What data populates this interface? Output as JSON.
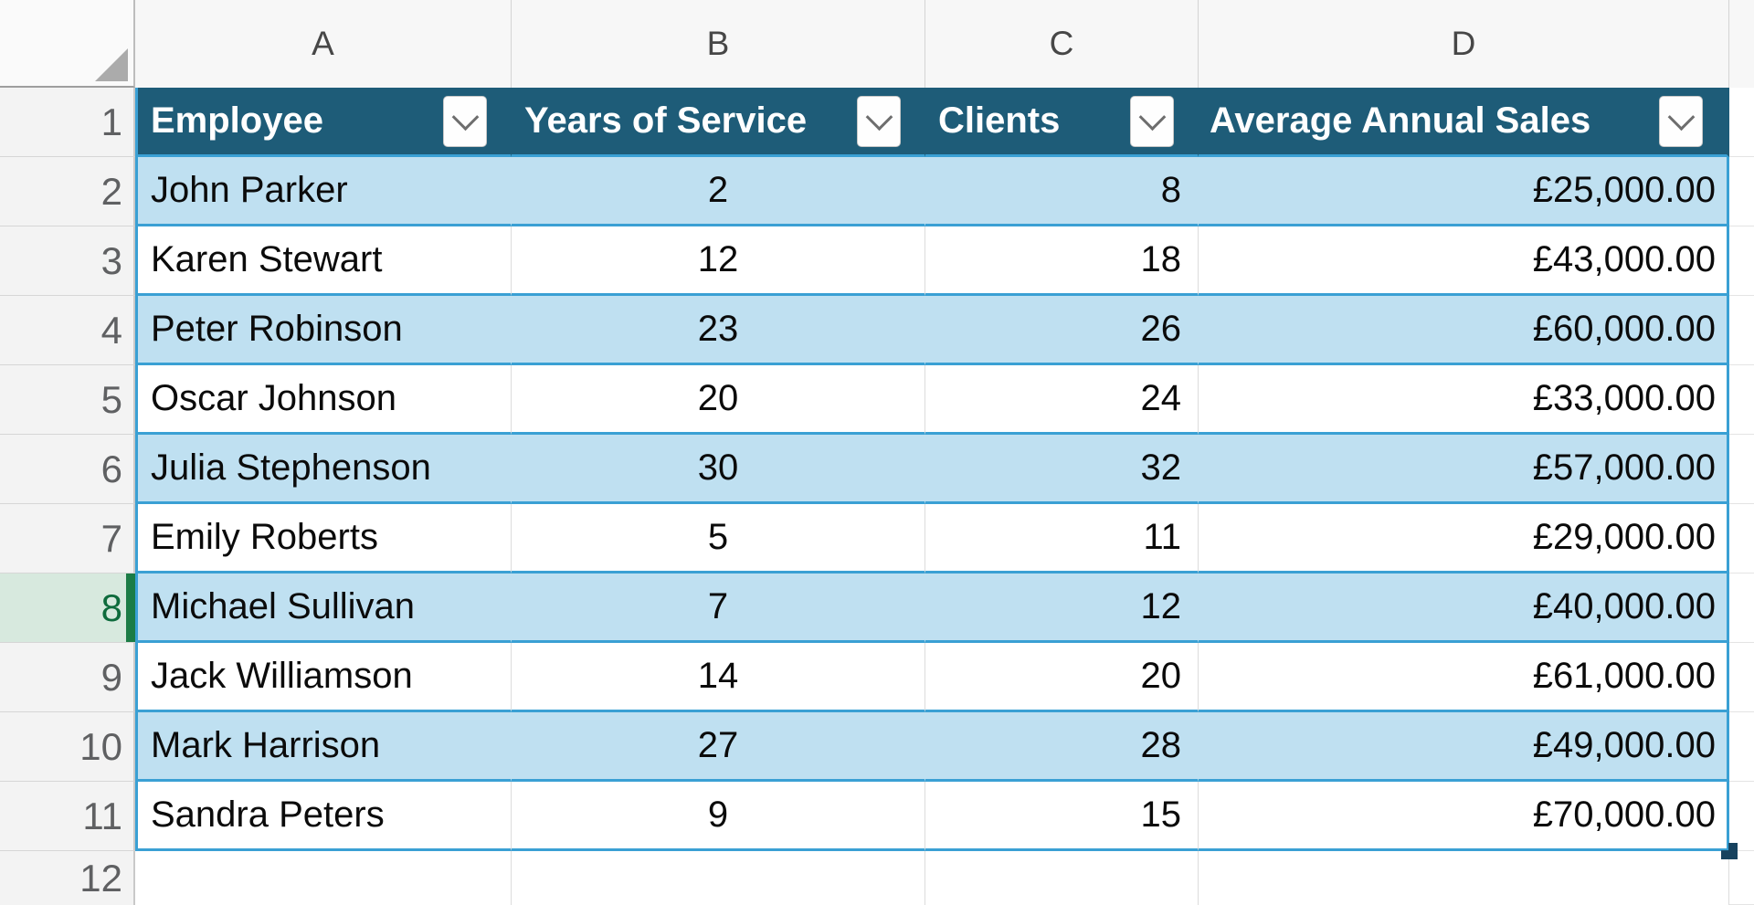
{
  "grid": {
    "column_labels": [
      "A",
      "B",
      "C",
      "D"
    ],
    "row_numbers": [
      "1",
      "2",
      "3",
      "4",
      "5",
      "6",
      "7",
      "8",
      "9",
      "10",
      "11",
      "12"
    ]
  },
  "selection": {
    "active_row_number": "8",
    "active_row_highlight": "#D7E9DE",
    "active_row_accent": "#1B7C45"
  },
  "table": {
    "headers": [
      {
        "label": "Employee"
      },
      {
        "label": "Years of Service"
      },
      {
        "label": "Clients"
      },
      {
        "label": "Average Annual Sales"
      }
    ],
    "rows": [
      {
        "employee": "John Parker",
        "years": "2",
        "clients": "8",
        "sales": "£25,000.00"
      },
      {
        "employee": "Karen Stewart",
        "years": "12",
        "clients": "18",
        "sales": "£43,000.00"
      },
      {
        "employee": "Peter Robinson",
        "years": "23",
        "clients": "26",
        "sales": "£60,000.00"
      },
      {
        "employee": "Oscar Johnson",
        "years": "20",
        "clients": "24",
        "sales": "£33,000.00"
      },
      {
        "employee": "Julia Stephenson",
        "years": "30",
        "clients": "32",
        "sales": "£57,000.00"
      },
      {
        "employee": "Emily Roberts",
        "years": "5",
        "clients": "11",
        "sales": "£29,000.00"
      },
      {
        "employee": "Michael Sullivan",
        "years": "7",
        "clients": "12",
        "sales": "£40,000.00"
      },
      {
        "employee": "Jack Williamson",
        "years": "14",
        "clients": "20",
        "sales": "£61,000.00"
      },
      {
        "employee": "Mark Harrison",
        "years": "27",
        "clients": "28",
        "sales": "£49,000.00"
      },
      {
        "employee": "Sandra Peters",
        "years": "9",
        "clients": "15",
        "sales": "£70,000.00"
      }
    ]
  },
  "colors": {
    "table_header_fill": "#1E5C78",
    "table_header_text": "#FFFFFF",
    "band_fill": "#BFE0F1",
    "table_border": "#3AA0D4",
    "resize_handle": "#16425E",
    "gridline": "#DCDCDC"
  }
}
